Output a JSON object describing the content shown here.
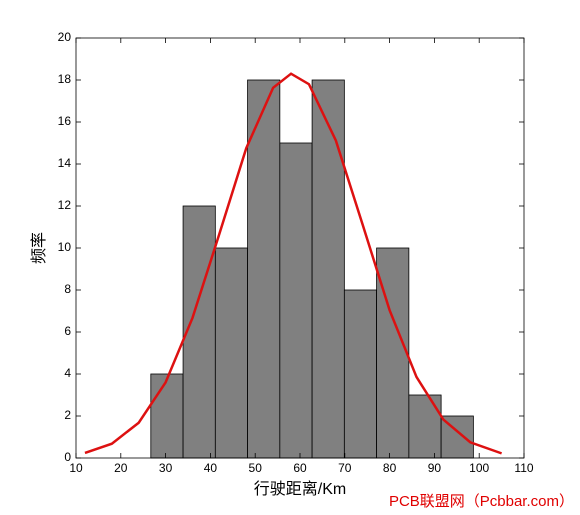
{
  "chart_data": {
    "type": "histogram",
    "x_label": "行驶距离/Km",
    "y_label": "频率",
    "watermark": "PCB联盟网（Pcbbar.com）",
    "bins": [
      26.7,
      33.9,
      41.1,
      48.3,
      55.5,
      62.7,
      69.9,
      77.1,
      84.3,
      91.5,
      98.7
    ],
    "counts": [
      4,
      12,
      10,
      18,
      15,
      18,
      8,
      10,
      3,
      2
    ],
    "color": "#808080",
    "curve": {
      "color": "#dd1111",
      "x": [
        12,
        18,
        24,
        30,
        36,
        42,
        48,
        54,
        58,
        62,
        68,
        74,
        80,
        86,
        92,
        98,
        105
      ],
      "values": [
        0.24,
        0.68,
        1.68,
        3.6,
        6.67,
        10.67,
        14.75,
        17.63,
        18.3,
        17.8,
        15.12,
        11.1,
        7.04,
        3.86,
        1.83,
        0.75,
        0.22
      ]
    },
    "xlim": [
      10,
      110
    ],
    "xticks": [
      10,
      20,
      30,
      40,
      50,
      60,
      70,
      80,
      90,
      100,
      110
    ],
    "ylim": [
      0,
      20
    ],
    "yticks": [
      0,
      2,
      4,
      6,
      8,
      10,
      12,
      14,
      16,
      18,
      20
    ]
  }
}
